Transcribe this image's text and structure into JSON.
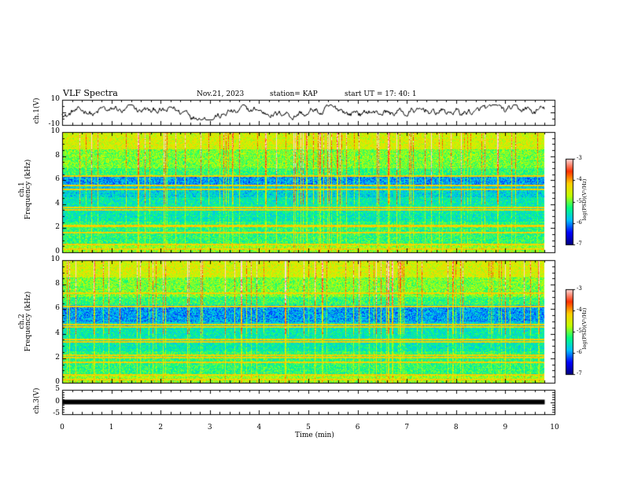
{
  "header": {
    "title": "VLF Spectra",
    "date": "Nov.21, 2023",
    "station": "station= KAP",
    "start": "start  UT  =   17: 40: 1"
  },
  "labels": {
    "ch1_wave": "ch.1(V)",
    "ch1_spec_a": "ch.1",
    "ch1_spec_b": "Frequency  (kHz)",
    "ch2_spec_a": "ch.2",
    "ch2_spec_b": "Frequency  (kHz)",
    "ch3_wave": "ch.3(V)",
    "colorbar": "log(PSD)(V²/Hz)",
    "xlabel": "Time  (min)"
  },
  "colors": {
    "axis": "#000000",
    "colormap": [
      "#000080",
      "#0000ff",
      "#00c0ff",
      "#00ff80",
      "#c0ff00",
      "#ffd000",
      "#ff3000",
      "#ffd8d8"
    ]
  },
  "chart_data": [
    {
      "type": "line",
      "panel": "ch1-waveform",
      "ylabel": "ch.1(V)",
      "xlim": [
        0,
        10
      ],
      "ylim": [
        -10,
        10
      ],
      "yticks": [
        "10",
        "-10"
      ],
      "data_extent_min": 9.8,
      "amplitude_V": 6
    },
    {
      "type": "heatmap",
      "panel": "ch1-spectrogram",
      "ylabel": "Frequency  (kHz)",
      "xlim": [
        0,
        10
      ],
      "ylim": [
        0,
        10
      ],
      "yticks": [
        "0",
        "2",
        "4",
        "6",
        "8",
        "10"
      ],
      "colorbar": {
        "label": "log(PSD)(V²/Hz)",
        "ticks": [
          "-3",
          "-4",
          "-5",
          "-6",
          "-7"
        ],
        "range": [
          -7,
          -3
        ]
      },
      "lines_kHz": [
        0.3,
        0.7,
        1.7,
        2.2,
        2.3,
        3.6,
        3.8,
        5.3,
        5.6,
        6.4
      ],
      "low_band_kHz": [
        5.6,
        6.4
      ]
    },
    {
      "type": "heatmap",
      "panel": "ch2-spectrogram",
      "ylabel": "Frequency  (kHz)",
      "xlim": [
        0,
        10
      ],
      "ylim": [
        0,
        10
      ],
      "yticks": [
        "0",
        "2",
        "4",
        "6",
        "8",
        "10"
      ],
      "colorbar": {
        "label": "log(PSD)(V²/Hz)",
        "ticks": [
          "-3",
          "-4",
          "-5",
          "-6",
          "-7"
        ],
        "range": [
          -7,
          -3
        ]
      },
      "lines_kHz": [
        0.3,
        0.7,
        1.7,
        2.1,
        2.3,
        3.4,
        3.6,
        4.6,
        4.8,
        6.3,
        7.4
      ],
      "low_band_kHz": [
        5.0,
        6.2
      ]
    },
    {
      "type": "line",
      "panel": "ch3-waveform",
      "ylabel": "ch.3(V)",
      "xlim": [
        0,
        10
      ],
      "ylim": [
        -5,
        5
      ],
      "yticks": [
        "5",
        "0",
        "-5"
      ],
      "level_V": 0,
      "data_extent_min": 9.8
    }
  ],
  "xaxis": {
    "label": "Time  (min)",
    "ticks": [
      "0",
      "1",
      "2",
      "3",
      "4",
      "5",
      "6",
      "7",
      "8",
      "9",
      "10"
    ]
  }
}
